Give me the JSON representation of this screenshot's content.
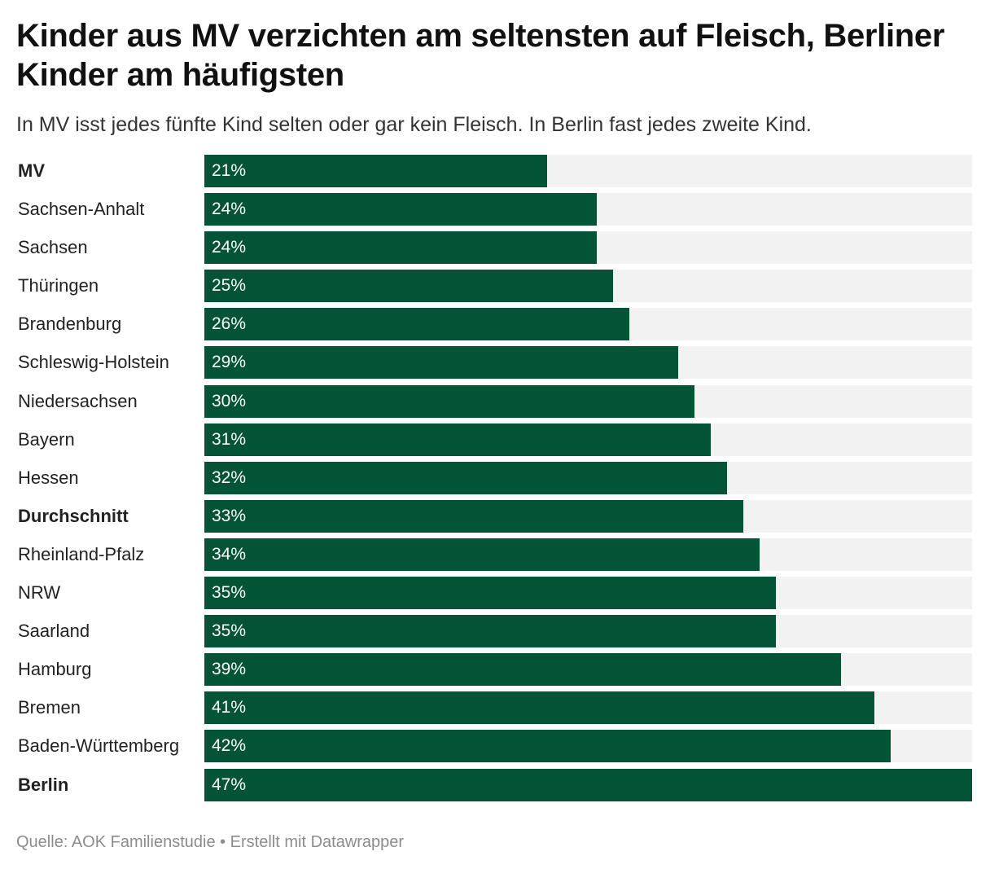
{
  "title": "Kinder aus MV verzichten am seltensten auf Fleisch, Berliner Kinder am häufigsten",
  "subtitle": "In MV isst jedes fünfte Kind selten oder gar kein Fleisch. In Berlin fast jedes zweite Kind.",
  "source": "Quelle: AOK Familienstudie • Erstellt mit Datawrapper",
  "colors": {
    "bar": "#035337",
    "track": "#f2f2f2"
  },
  "chart_data": {
    "type": "bar",
    "orientation": "horizontal",
    "categories": [
      "MV",
      "Sachsen-Anhalt",
      "Sachsen",
      "Thüringen",
      "Brandenburg",
      "Schleswig-Holstein",
      "Niedersachsen",
      "Bayern",
      "Hessen",
      "Durchschnitt",
      "Rheinland-Pfalz",
      "NRW",
      "Saarland",
      "Hamburg",
      "Bremen",
      "Baden-Württemberg",
      "Berlin"
    ],
    "values": [
      21,
      24,
      24,
      25,
      26,
      29,
      30,
      31,
      32,
      33,
      34,
      35,
      35,
      39,
      41,
      42,
      47
    ],
    "value_labels": [
      "21%",
      "24%",
      "24%",
      "25%",
      "26%",
      "29%",
      "30%",
      "31%",
      "32%",
      "33%",
      "34%",
      "35%",
      "35%",
      "39%",
      "41%",
      "42%",
      "47%"
    ],
    "bold_categories": [
      "MV",
      "Durchschnitt",
      "Berlin"
    ],
    "xlim": [
      0,
      47
    ],
    "unit": "%",
    "grid": false,
    "title": "Kinder aus MV verzichten am seltensten auf Fleisch, Berliner Kinder am häufigsten",
    "subtitle": "In MV isst jedes fünfte Kind selten oder gar kein Fleisch. In Berlin fast jedes zweite Kind.",
    "xlabel": "",
    "ylabel": ""
  }
}
